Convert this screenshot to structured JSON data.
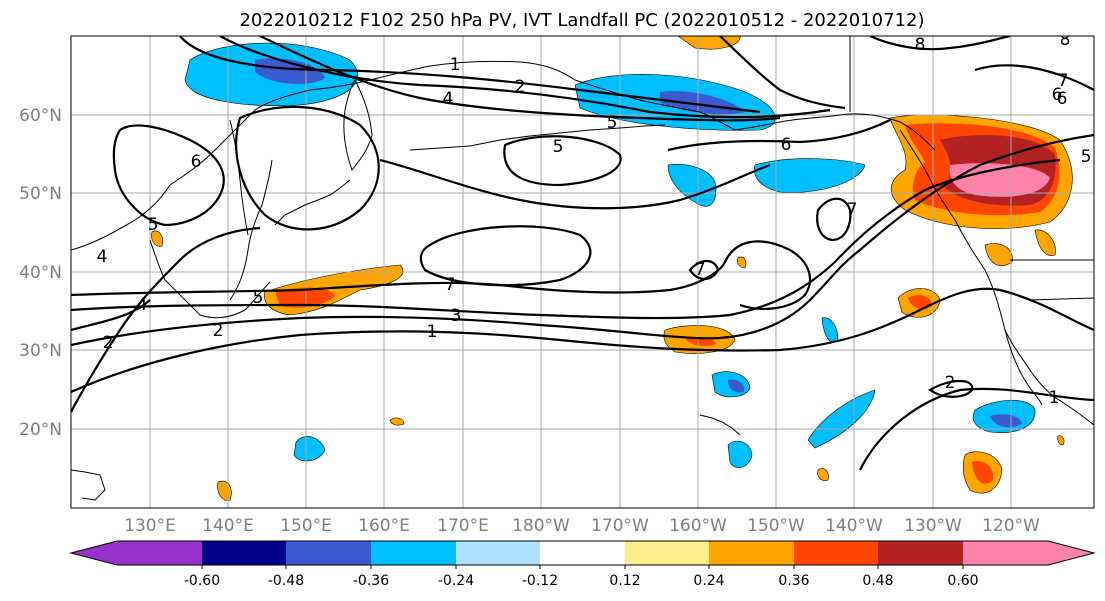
{
  "title": "2022010212 F102 250 hPa PV, IVT Landfall PC (2022010512 - 2022010712)",
  "lat_labels": [
    "60°N",
    "50°N",
    "40°N",
    "30°N",
    "20°N"
  ],
  "lon_labels": [
    "130°E",
    "140°E",
    "150°E",
    "160°E",
    "170°E",
    "180°W",
    "170°W",
    "160°W",
    "150°W",
    "140°W",
    "130°W",
    "120°W"
  ],
  "colorbar": {
    "colors": [
      "#9932cc",
      "#00008b",
      "#3a5bd0",
      "#00bfff",
      "#b0e2ff",
      "#ffffff",
      "#ffec8b",
      "#ffa500",
      "#ff4500",
      "#b22222",
      "#ff82ab"
    ],
    "tick_labels": [
      "-0.60",
      "-0.48",
      "-0.36",
      "-0.24",
      "-0.12",
      "0.12",
      "0.24",
      "0.36",
      "0.48",
      "0.60"
    ]
  },
  "contour_labels": [
    "1",
    "2",
    "4",
    "5",
    "6",
    "5",
    "7",
    "6",
    "4",
    "5",
    "4",
    "5",
    "7",
    "3",
    "1",
    "2",
    "2",
    "6",
    "2",
    "1",
    "7",
    "7",
    "8",
    "8",
    "6",
    "5"
  ],
  "chart_data": {
    "type": "map",
    "region": "North Pacific",
    "projection": "cylindrical",
    "lon_range_degE": [
      120,
      251
    ],
    "lat_range_degN": [
      10,
      70
    ],
    "shaded_field_levels": [
      -0.6,
      -0.48,
      -0.36,
      -0.24,
      -0.12,
      0.12,
      0.24,
      0.36,
      0.48,
      0.6
    ],
    "contour_field": "250 hPa PV",
    "grid": true
  }
}
